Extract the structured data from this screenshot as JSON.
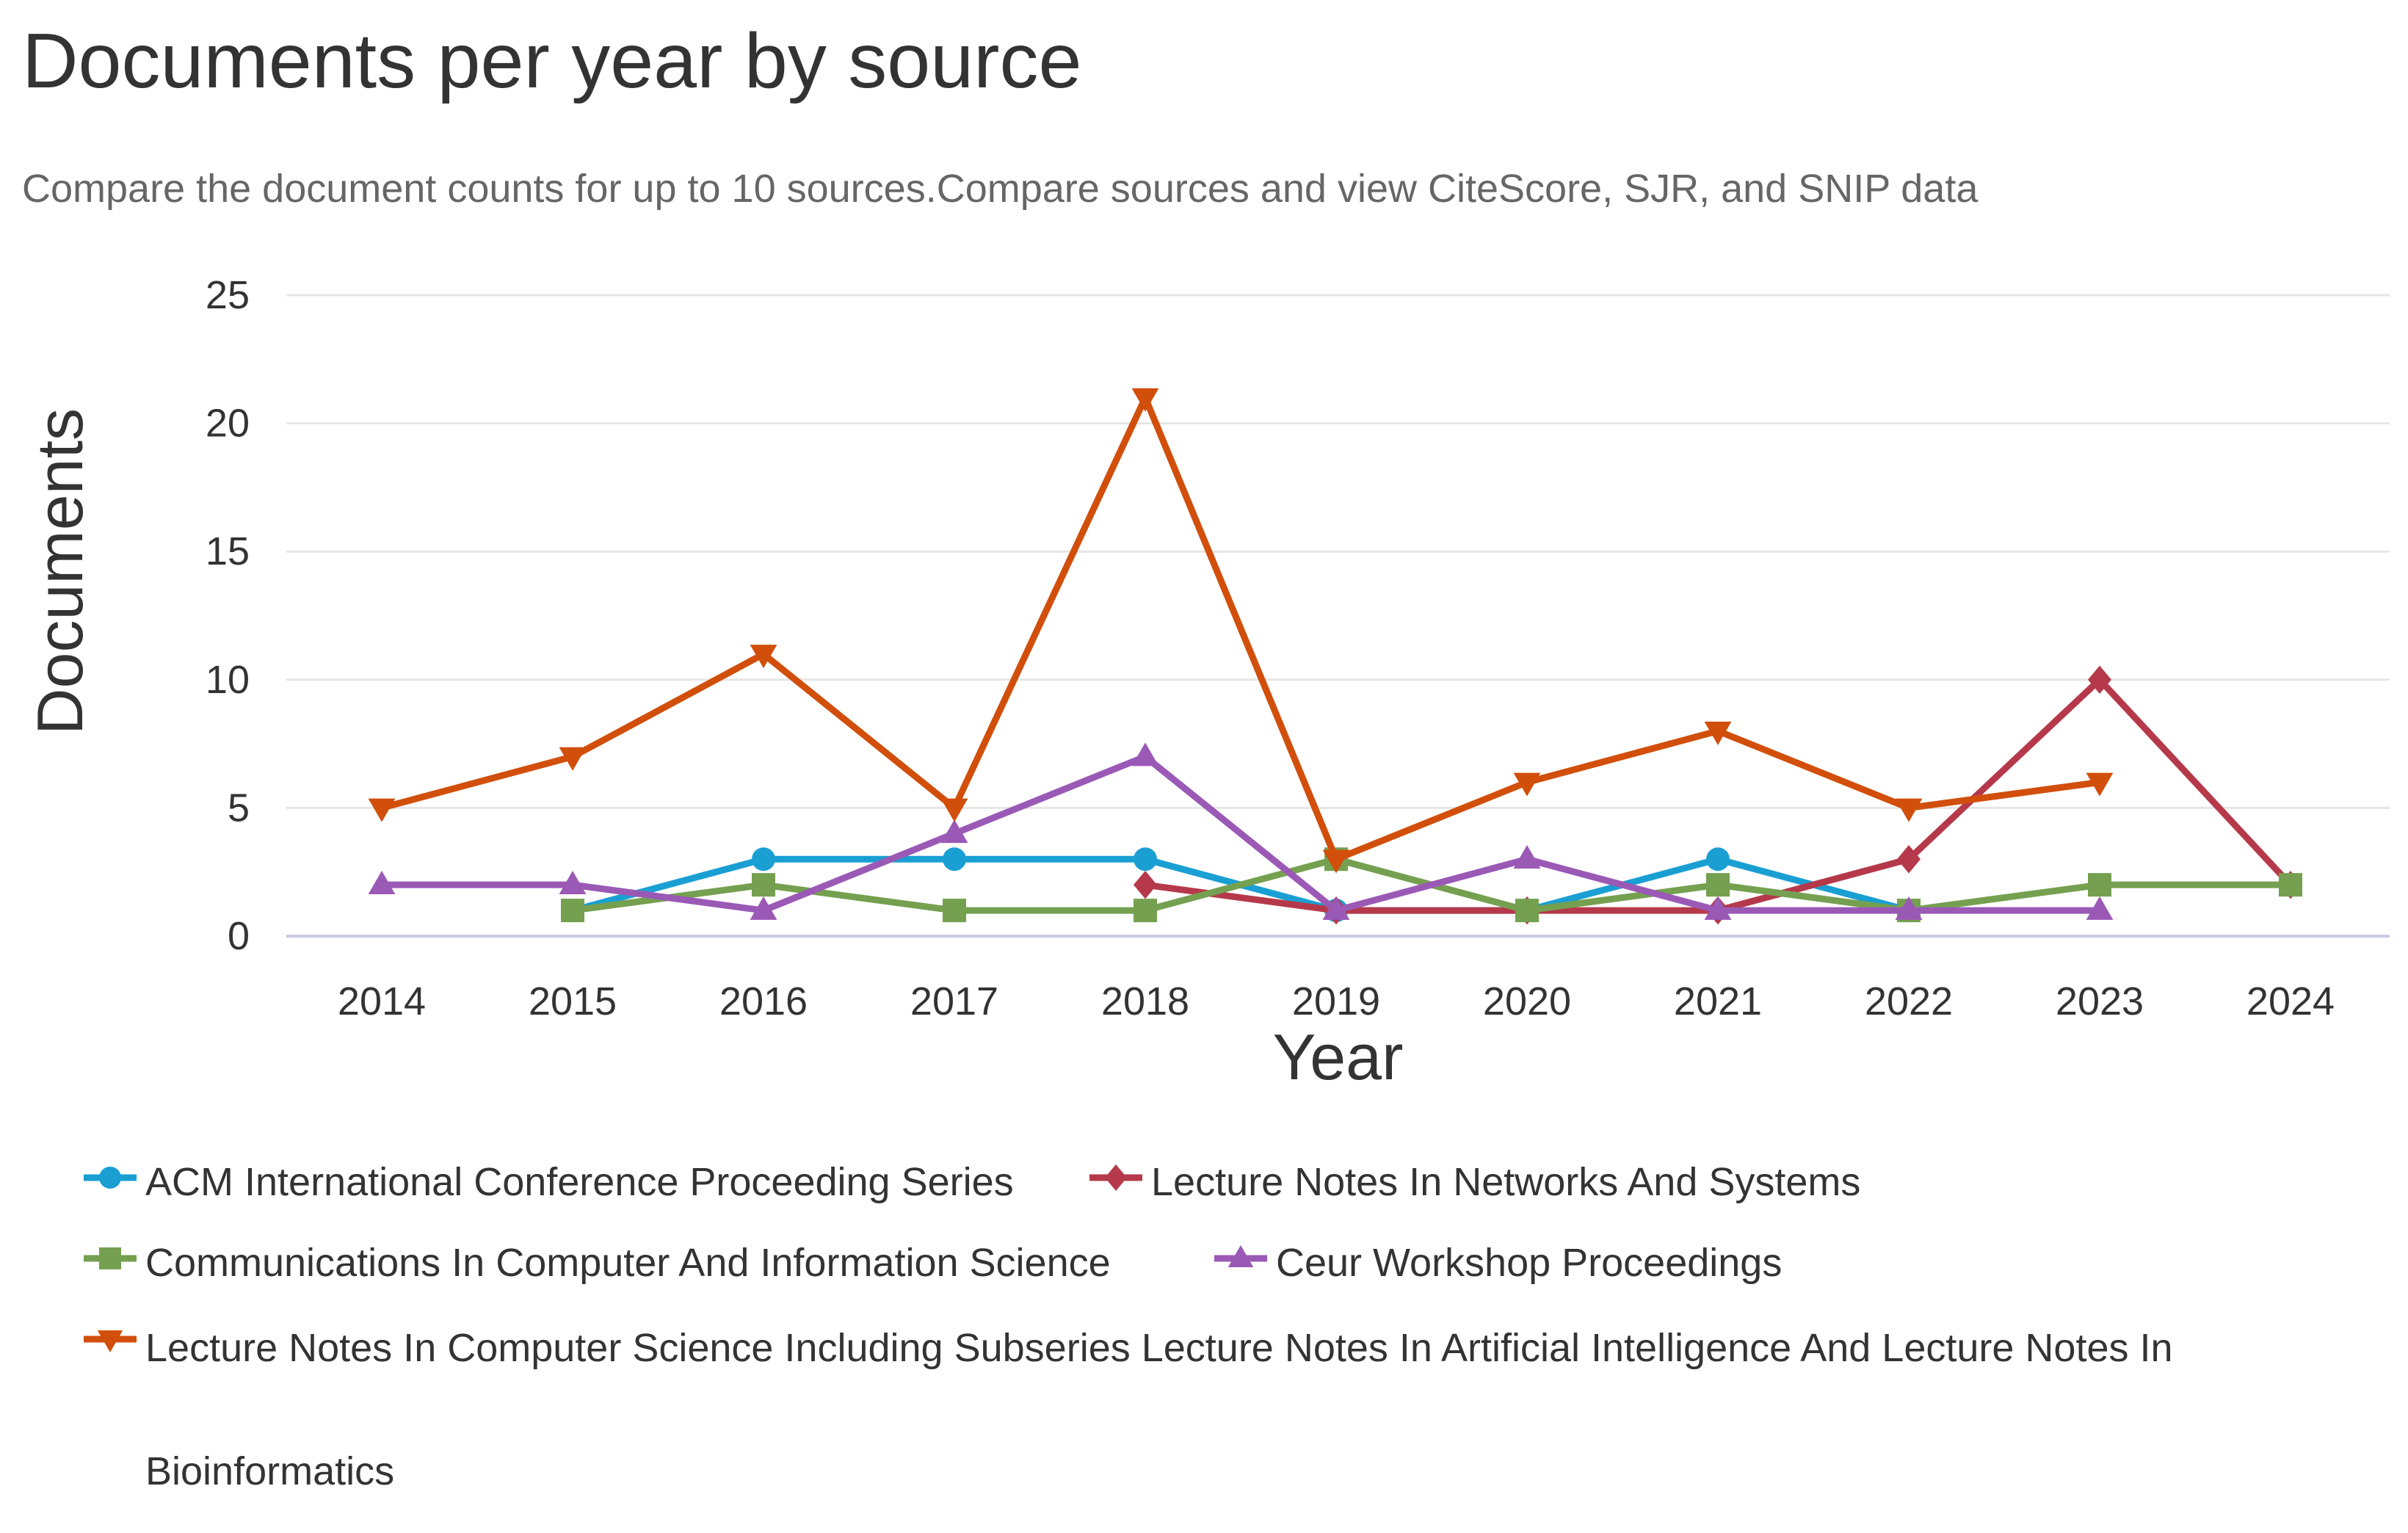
{
  "page": {
    "title": "Documents per year by source",
    "subtitle": "Compare the document counts for up to 10 sources.Compare sources and view CiteScore, SJR, and SNIP data"
  },
  "chart_data": {
    "type": "line",
    "xlabel": "Year",
    "ylabel": "Documents",
    "x": [
      2014,
      2015,
      2016,
      2017,
      2018,
      2019,
      2020,
      2021,
      2022,
      2023,
      2024
    ],
    "ylim": [
      0,
      25
    ],
    "yticks": [
      0,
      5,
      10,
      15,
      20,
      25
    ],
    "grid": true,
    "legend_position": "bottom",
    "series": [
      {
        "name": "ACM International Conference Proceeding Series",
        "color": "#1a9fd3",
        "marker": "circle",
        "values": [
          null,
          1,
          3,
          3,
          3,
          1,
          1,
          3,
          1,
          null,
          null
        ]
      },
      {
        "name": "Lecture Notes In Networks And Systems",
        "color": "#b5394a",
        "marker": "diamond",
        "values": [
          null,
          null,
          null,
          null,
          2,
          1,
          1,
          1,
          3,
          10,
          2
        ]
      },
      {
        "name": "Communications In Computer And Information Science",
        "color": "#74a050",
        "marker": "square",
        "values": [
          null,
          1,
          2,
          1,
          1,
          3,
          1,
          2,
          1,
          2,
          2
        ]
      },
      {
        "name": "Ceur Workshop Proceedings",
        "color": "#9b59b6",
        "marker": "triangle",
        "values": [
          2,
          2,
          1,
          4,
          7,
          1,
          3,
          1,
          1,
          1,
          null
        ]
      },
      {
        "name": "Lecture Notes In Computer Science Including Subseries Lecture Notes In Artificial Intelligence And Lecture Notes In Bioinformatics",
        "color": "#d14f0b",
        "marker": "triangle-down",
        "values": [
          5,
          7,
          11,
          5,
          21,
          3,
          6,
          8,
          5,
          6,
          null
        ]
      }
    ]
  }
}
